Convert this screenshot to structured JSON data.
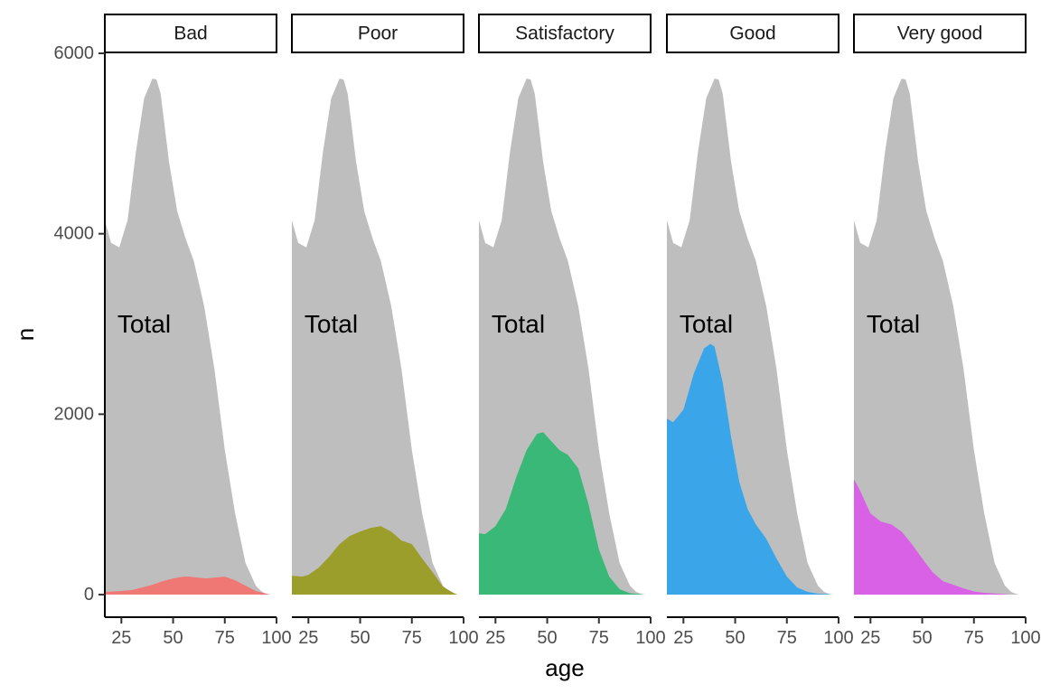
{
  "chart_data": {
    "type": "area",
    "subtype": "faceted-density-overlay",
    "xlabel": "age",
    "ylabel": "n",
    "xlim": [
      17,
      100
    ],
    "ylim": [
      -250,
      6000
    ],
    "x_ticks": [
      25,
      50,
      75,
      100
    ],
    "y_ticks": [
      0,
      2000,
      4000,
      6000
    ],
    "grid": false,
    "legend": "none",
    "annotation": "Total",
    "annotation_position": {
      "x": 36,
      "y": 3000
    },
    "background_series": {
      "color": "#BEBEBE",
      "x": [
        17,
        20,
        24,
        28,
        32,
        36,
        40,
        42,
        44,
        48,
        52,
        56,
        60,
        65,
        70,
        75,
        80,
        85,
        90,
        93,
        95,
        97
      ],
      "values": [
        4150,
        3900,
        3850,
        4150,
        4900,
        5500,
        5720,
        5710,
        5550,
        4800,
        4250,
        3950,
        3700,
        3200,
        2500,
        1600,
        900,
        350,
        100,
        30,
        10,
        0
      ]
    },
    "panels": [
      {
        "label": "Bad",
        "color": "#F07874",
        "x": [
          17,
          25,
          30,
          35,
          40,
          45,
          50,
          55,
          58,
          62,
          66,
          70,
          75,
          80,
          85,
          90,
          95,
          97
        ],
        "values": [
          30,
          40,
          50,
          80,
          110,
          150,
          180,
          200,
          200,
          190,
          180,
          190,
          200,
          160,
          100,
          40,
          10,
          0
        ]
      },
      {
        "label": "Poor",
        "color": "#9B9E2B",
        "x": [
          17,
          22,
          25,
          30,
          35,
          40,
          45,
          50,
          55,
          60,
          65,
          70,
          75,
          80,
          85,
          90,
          95,
          97
        ],
        "values": [
          210,
          200,
          220,
          300,
          420,
          560,
          650,
          700,
          740,
          760,
          700,
          600,
          560,
          400,
          250,
          90,
          20,
          0
        ]
      },
      {
        "label": "Satisfactory",
        "color": "#3AB878",
        "x": [
          17,
          20,
          25,
          30,
          35,
          40,
          45,
          48,
          52,
          56,
          60,
          65,
          70,
          75,
          80,
          85,
          90,
          95,
          97
        ],
        "values": [
          680,
          670,
          760,
          950,
          1300,
          1600,
          1780,
          1800,
          1700,
          1600,
          1550,
          1400,
          1000,
          500,
          200,
          60,
          15,
          5,
          0
        ]
      },
      {
        "label": "Good",
        "color": "#3AA5E8",
        "x": [
          17,
          20,
          25,
          30,
          35,
          38,
          40,
          44,
          48,
          52,
          56,
          60,
          65,
          70,
          75,
          80,
          85,
          90,
          95,
          97
        ],
        "values": [
          1950,
          1910,
          2050,
          2450,
          2730,
          2780,
          2750,
          2350,
          1750,
          1250,
          950,
          780,
          620,
          400,
          200,
          80,
          30,
          10,
          5,
          0
        ]
      },
      {
        "label": "Very good",
        "color": "#D961E6",
        "x": [
          17,
          20,
          25,
          30,
          35,
          40,
          45,
          50,
          55,
          60,
          65,
          70,
          75,
          80,
          85,
          90,
          93
        ],
        "values": [
          1280,
          1150,
          900,
          810,
          780,
          700,
          560,
          400,
          250,
          150,
          110,
          70,
          35,
          20,
          12,
          5,
          0
        ]
      }
    ]
  }
}
